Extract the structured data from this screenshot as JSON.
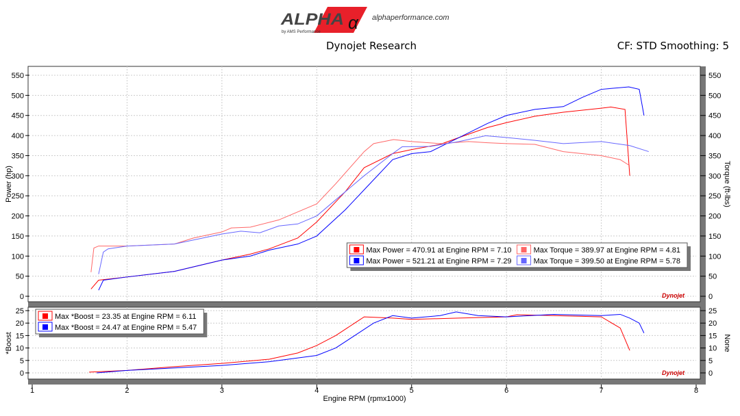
{
  "header": {
    "logo_text": "ALPHA",
    "logo_sub": "by AMS Performance",
    "site": "alphaperformance.com",
    "title": "Dynojet Research",
    "cf": "CF: STD Smoothing: 5"
  },
  "colors": {
    "run1": "#ff0000",
    "run2": "#0000ff",
    "run1_torque": "#ff6666",
    "run2_torque": "#6666ff"
  },
  "chart_data": [
    {
      "type": "line",
      "ylabel": "Power (hp)",
      "y2label": "Torque (ft-lbs)",
      "ylim": [
        0,
        550
      ],
      "xlim": [
        1,
        8
      ],
      "grid": true,
      "yticks": [
        0,
        50,
        100,
        150,
        200,
        250,
        300,
        350,
        400,
        450,
        500,
        550
      ],
      "legend": [
        "Max Power = 470.91 at Engine RPM = 7.10",
        "Max Torque = 389.97 at Engine RPM = 4.81",
        "Max Power = 521.21 at Engine RPM = 7.29",
        "Max Torque = 399.50 at Engine RPM = 5.78"
      ],
      "legend_placement": "right",
      "series": [
        {
          "name": "Max Power = 470.91 at Engine RPM = 7.10",
          "color": "#ff0000",
          "x": [
            1.62,
            1.7,
            2,
            2.5,
            3,
            3.3,
            3.5,
            3.8,
            4,
            4.3,
            4.5,
            4.8,
            5,
            5.3,
            5.5,
            5.8,
            6,
            6.3,
            6.6,
            7,
            7.1,
            7.25,
            7.3
          ],
          "y": [
            18,
            40,
            48,
            62,
            90,
            105,
            118,
            145,
            185,
            260,
            320,
            355,
            365,
            378,
            395,
            420,
            432,
            448,
            458,
            468,
            471,
            465,
            300
          ]
        },
        {
          "name": "Max Power = 521.21 at Engine RPM = 7.29",
          "color": "#0000ff",
          "x": [
            1.7,
            1.75,
            2,
            2.5,
            3,
            3.3,
            3.5,
            3.8,
            4,
            4.3,
            4.5,
            4.8,
            5,
            5.2,
            5.5,
            5.8,
            6,
            6.3,
            6.6,
            6.8,
            7,
            7.29,
            7.4,
            7.45
          ],
          "y": [
            15,
            40,
            48,
            62,
            90,
            100,
            115,
            130,
            150,
            215,
            265,
            340,
            355,
            360,
            395,
            430,
            450,
            465,
            472,
            495,
            515,
            521,
            515,
            450
          ]
        },
        {
          "name": "Max Torque = 389.97 at Engine RPM = 4.81",
          "color": "#ff6666",
          "x": [
            1.62,
            1.65,
            1.7,
            2,
            2.5,
            2.7,
            3,
            3.1,
            3.3,
            3.6,
            4,
            4.2,
            4.5,
            4.6,
            4.81,
            5,
            5.3,
            5.6,
            5.8,
            6,
            6.3,
            6.6,
            7,
            7.2,
            7.3
          ],
          "y": [
            60,
            120,
            125,
            125,
            130,
            145,
            160,
            170,
            172,
            190,
            230,
            280,
            360,
            380,
            390,
            385,
            380,
            385,
            382,
            380,
            378,
            360,
            350,
            340,
            325
          ]
        },
        {
          "name": "Max Torque = 399.50 at Engine RPM = 5.78",
          "color": "#6666ff",
          "x": [
            1.7,
            1.75,
            1.8,
            2,
            2.5,
            3,
            3.2,
            3.4,
            3.6,
            3.8,
            4,
            4.3,
            4.5,
            4.8,
            4.9,
            5.2,
            5.5,
            5.78,
            6,
            6.3,
            6.6,
            7,
            7.3,
            7.5
          ],
          "y": [
            55,
            110,
            118,
            125,
            130,
            155,
            162,
            158,
            175,
            180,
            200,
            260,
            300,
            355,
            372,
            373,
            385,
            399.5,
            395,
            388,
            380,
            385,
            375,
            360
          ]
        }
      ]
    },
    {
      "type": "line",
      "ylabel": "*Boost",
      "y2label": "None",
      "xlabel": "Engine RPM (rpmx1000)",
      "ylim": [
        -2.5,
        27
      ],
      "xlim": [
        1,
        8
      ],
      "grid": true,
      "yticks": [
        0,
        5,
        10,
        15,
        20,
        25
      ],
      "xticks": [
        1,
        2,
        3,
        4,
        5,
        6,
        7,
        8
      ],
      "legend": [
        "Max *Boost = 23.35 at Engine RPM = 6.11",
        "Max *Boost = 24.47 at Engine RPM = 5.47"
      ],
      "legend_placement": "top-left",
      "series": [
        {
          "name": "Max *Boost = 23.35 at Engine RPM = 6.11",
          "color": "#ff0000",
          "x": [
            1.6,
            2,
            2.5,
            3,
            3.5,
            3.8,
            4,
            4.2,
            4.4,
            4.5,
            4.8,
            5,
            5.5,
            6,
            6.11,
            6.5,
            7,
            7.2,
            7.3
          ],
          "y": [
            0.3,
            1,
            2.5,
            3.8,
            5.5,
            8,
            11,
            15,
            20,
            22.5,
            22,
            21.5,
            22,
            22.5,
            23.35,
            23,
            22.5,
            18,
            9
          ]
        },
        {
          "name": "Max *Boost = 24.47 at Engine RPM = 5.47",
          "color": "#0000ff",
          "x": [
            1.68,
            2,
            2.5,
            3,
            3.5,
            4,
            4.2,
            4.4,
            4.6,
            4.8,
            5,
            5.3,
            5.47,
            5.7,
            6,
            6.5,
            7,
            7.2,
            7.3,
            7.4,
            7.45
          ],
          "y": [
            0,
            1,
            2,
            3,
            4.5,
            7,
            10,
            15,
            20,
            23,
            22,
            23,
            24.47,
            23,
            22.5,
            23.5,
            23,
            23.5,
            22,
            20,
            16
          ]
        }
      ]
    }
  ]
}
